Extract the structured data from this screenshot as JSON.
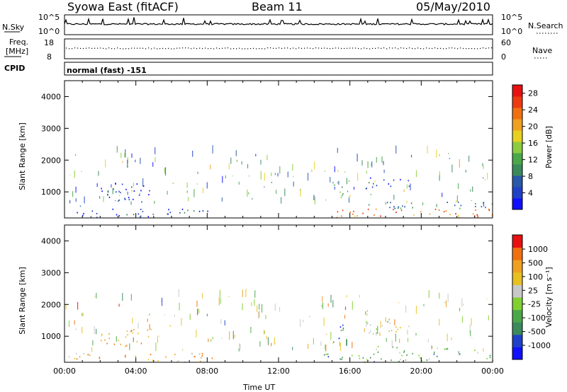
{
  "header": {
    "station": "Syowa East (fitACF)",
    "beam": "Beam 11",
    "date": "05/May/2010"
  },
  "summary_panels": {
    "nsky_label": "N.Sky",
    "nsky_ticks": [
      "10^5",
      "10^0"
    ],
    "nsearch_label": "N.Search",
    "nsearch_ticks": [
      "10^5",
      "10^0"
    ],
    "freq_label_1": "Freq.",
    "freq_label_2": "[MHz]",
    "freq_ticks": [
      "18",
      "8"
    ],
    "nave_label": "Nave",
    "nave_ticks": [
      "60",
      "0"
    ],
    "cpid_label": "CPID",
    "cpid_value": "normal (fast) -151"
  },
  "chart_data": [
    {
      "type": "heatmap",
      "panel": "power",
      "ylabel": "Slant Range [km]",
      "ylim": [
        180,
        4500
      ],
      "yticks": [
        "1000",
        "2000",
        "3000",
        "4000"
      ],
      "xlim_hours": [
        0,
        24
      ],
      "colorbar": {
        "label": "Power [dB]",
        "ticks": [
          "4",
          "8",
          "12",
          "16",
          "20",
          "24",
          "28"
        ],
        "colors": [
          "#1010ff",
          "#2040c8",
          "#2858a8",
          "#3a8a5c",
          "#4aa848",
          "#8ccc40",
          "#e8d020",
          "#f0a020",
          "#f07010",
          "#ee3a10",
          "#e81010"
        ],
        "range": [
          0,
          30
        ]
      },
      "bands": [
        {
          "t0": 0.2,
          "t1": 8.5,
          "r0": 200,
          "r1": 480,
          "level": 0.15
        },
        {
          "t0": 14.5,
          "t1": 24,
          "r0": 200,
          "r1": 480,
          "level": 0.8
        },
        {
          "t0": 17.0,
          "t1": 24,
          "r0": 500,
          "r1": 700,
          "level": 0.3
        },
        {
          "t0": 15.0,
          "t1": 16.0,
          "r0": 800,
          "r1": 1400,
          "level": 0.45
        },
        {
          "t0": 16.8,
          "t1": 19.5,
          "r0": 1100,
          "r1": 1500,
          "level": 0.15
        },
        {
          "t0": 2.0,
          "t1": 5.0,
          "r0": 700,
          "r1": 1300,
          "level": 0.1
        }
      ]
    },
    {
      "type": "heatmap",
      "panel": "velocity",
      "ylabel": "Slant Range [km]",
      "xlabel": "Time UT",
      "ylim": [
        180,
        4500
      ],
      "yticks": [
        "1000",
        "2000",
        "3000",
        "4000"
      ],
      "xticks": [
        "00:00",
        "04:00",
        "08:00",
        "12:00",
        "16:00",
        "20:00",
        "00:00"
      ],
      "xlim_hours": [
        0,
        24
      ],
      "colorbar": {
        "label": "Velocity [m s⁻¹]",
        "ticks": [
          "1000",
          "500",
          "100",
          "25",
          "-25",
          "-100",
          "-500",
          "-1000"
        ],
        "colors": [
          "#1010ff",
          "#2040c8",
          "#3a8a5c",
          "#4aa848",
          "#80d030",
          "#c8c8c8",
          "#e8c020",
          "#f0a020",
          "#f07010",
          "#e81010"
        ],
        "range": [
          -1200,
          1200
        ]
      },
      "bands": [
        {
          "t0": 0.2,
          "t1": 8.5,
          "r0": 200,
          "r1": 480,
          "level": 0.7
        },
        {
          "t0": 14.5,
          "t1": 24,
          "r0": 200,
          "r1": 480,
          "level": 0.35
        },
        {
          "t0": 17.0,
          "t1": 24,
          "r0": 500,
          "r1": 700,
          "level": 0.4
        },
        {
          "t0": 15.0,
          "t1": 16.0,
          "r0": 800,
          "r1": 1400,
          "level": 0.2
        },
        {
          "t0": 16.8,
          "t1": 19.5,
          "r0": 1100,
          "r1": 1500,
          "level": 0.5
        },
        {
          "t0": 2.0,
          "t1": 5.0,
          "r0": 700,
          "r1": 1300,
          "level": 0.7
        }
      ]
    }
  ]
}
